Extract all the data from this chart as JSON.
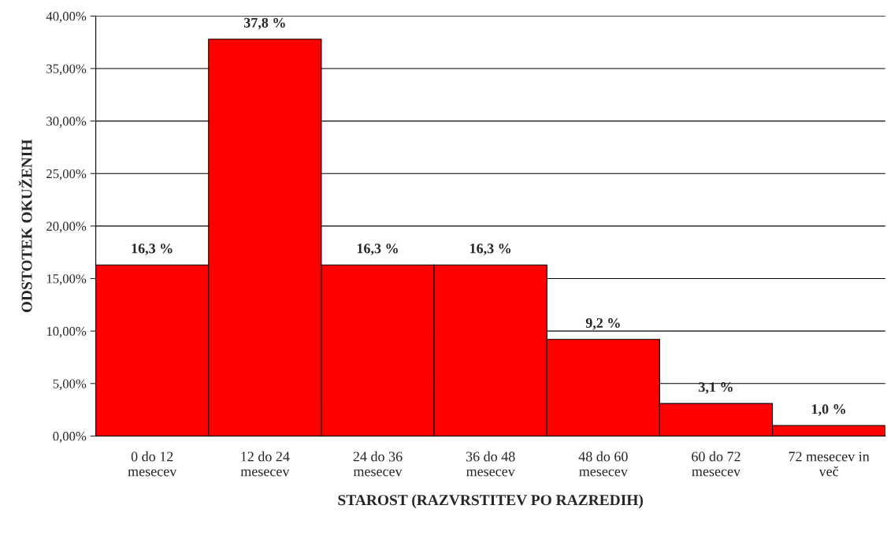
{
  "chart_data": {
    "type": "bar",
    "xlabel": "STAROST (RAZVRSTITEV PO RAZREDIH)",
    "ylabel": "ODSTOTEK OKUŽENIH",
    "categories": [
      "0 do 12\nmesecev",
      "12 do 24\nmesecev",
      "24 do 36\nmesecev",
      "36 do 48\nmesecev",
      "48 do 60\nmesecev",
      "60 do 72\nmesecev",
      "72 mesecev in\nveč"
    ],
    "values": [
      16.3,
      37.8,
      16.3,
      16.3,
      9.2,
      3.1,
      1.0
    ],
    "value_labels": [
      "16,3 %",
      "37,8 %",
      "16,3 %",
      "16,3 %",
      "9,2 %",
      "3,1 %",
      "1,0 %"
    ],
    "color": "#ff0000",
    "ylim": [
      0,
      40
    ],
    "yticks": [
      {
        "value": 0,
        "label": "0,00%"
      },
      {
        "value": 5,
        "label": "5,00%"
      },
      {
        "value": 10,
        "label": "10,00%"
      },
      {
        "value": 15,
        "label": "15,00%"
      },
      {
        "value": 20,
        "label": "20,00%"
      },
      {
        "value": 25,
        "label": "25,00%"
      },
      {
        "value": 30,
        "label": "30,00%"
      },
      {
        "value": 35,
        "label": "35,00%"
      },
      {
        "value": 40,
        "label": "40,00%"
      }
    ],
    "grid": "y"
  }
}
